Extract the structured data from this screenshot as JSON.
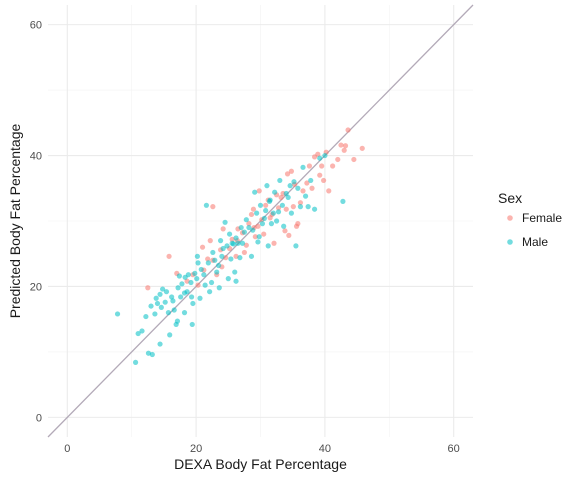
{
  "chart_data": {
    "type": "scatter",
    "title": "",
    "xlabel": "DEXA Body Fat Percentage",
    "ylabel": "Predicted Body Fat Percentage",
    "xlim": [
      -3,
      63
    ],
    "ylim": [
      -3,
      63
    ],
    "x_ticks": [
      0,
      20,
      40,
      60
    ],
    "y_ticks": [
      0,
      20,
      40,
      60
    ],
    "grid": true,
    "legend": {
      "title": "Sex",
      "position": "right"
    },
    "reference_line": {
      "slope": 1,
      "intercept": 0,
      "color": "#b3aab8"
    },
    "series": [
      {
        "name": "Female",
        "color": "#F8766D",
        "points": [
          [
            12.5,
            19.8
          ],
          [
            15.8,
            24.6
          ],
          [
            17.0,
            22.0
          ],
          [
            18.6,
            20.8
          ],
          [
            19.5,
            21.8
          ],
          [
            20.3,
            20.2
          ],
          [
            21.0,
            26.0
          ],
          [
            21.2,
            22.5
          ],
          [
            22.2,
            27.0
          ],
          [
            22.6,
            24.0
          ],
          [
            23.2,
            21.8
          ],
          [
            23.8,
            25.6
          ],
          [
            24.0,
            23.0
          ],
          [
            24.2,
            28.8
          ],
          [
            24.6,
            24.4
          ],
          [
            25.2,
            25.8
          ],
          [
            25.6,
            27.2
          ],
          [
            26.2,
            24.6
          ],
          [
            26.5,
            28.8
          ],
          [
            26.4,
            27.0
          ],
          [
            27.2,
            28.2
          ],
          [
            27.5,
            25.2
          ],
          [
            27.8,
            26.3
          ],
          [
            28.2,
            29.6
          ],
          [
            28.6,
            31.0
          ],
          [
            28.9,
            31.8
          ],
          [
            29.2,
            27.6
          ],
          [
            29.6,
            29.2
          ],
          [
            29.8,
            34.6
          ],
          [
            30.2,
            30.2
          ],
          [
            30.5,
            28.0
          ],
          [
            30.8,
            32.4
          ],
          [
            31.2,
            33.2
          ],
          [
            31.5,
            30.5
          ],
          [
            31.8,
            31.0
          ],
          [
            32.1,
            26.6
          ],
          [
            32.5,
            34.0
          ],
          [
            32.8,
            32.0
          ],
          [
            33.2,
            33.6
          ],
          [
            33.5,
            34.2
          ],
          [
            33.8,
            28.5
          ],
          [
            34.0,
            31.8
          ],
          [
            34.2,
            37.2
          ],
          [
            34.4,
            27.8
          ],
          [
            34.8,
            37.6
          ],
          [
            35.1,
            32.2
          ],
          [
            35.6,
            29.2
          ],
          [
            35.8,
            29.6
          ],
          [
            36.2,
            32.8
          ],
          [
            36.6,
            34.6
          ],
          [
            37.2,
            35.8
          ],
          [
            37.6,
            38.4
          ],
          [
            38.0,
            35.0
          ],
          [
            38.4,
            39.8
          ],
          [
            38.9,
            40.2
          ],
          [
            39.2,
            37.0
          ],
          [
            39.5,
            38.4
          ],
          [
            39.8,
            36.2
          ],
          [
            40.2,
            40.5
          ],
          [
            40.6,
            34.6
          ],
          [
            41.2,
            38.4
          ],
          [
            42.0,
            39.4
          ],
          [
            42.5,
            41.6
          ],
          [
            43.0,
            40.8
          ],
          [
            43.2,
            41.5
          ],
          [
            43.6,
            43.9
          ],
          [
            44.5,
            39.4
          ],
          [
            45.8,
            41.1
          ],
          [
            22.6,
            32.2
          ],
          [
            21.8,
            24.2
          ],
          [
            29.0,
            29.0
          ],
          [
            35.3,
            35.6
          ]
        ]
      },
      {
        "name": "Male",
        "color": "#00BFC4",
        "points": [
          [
            7.8,
            15.8
          ],
          [
            10.6,
            8.4
          ],
          [
            11.0,
            12.8
          ],
          [
            11.6,
            13.2
          ],
          [
            12.2,
            15.4
          ],
          [
            12.6,
            9.8
          ],
          [
            13.2,
            9.6
          ],
          [
            13.0,
            17.0
          ],
          [
            13.8,
            18.2
          ],
          [
            13.6,
            15.8
          ],
          [
            14.0,
            17.4
          ],
          [
            14.4,
            18.8
          ],
          [
            14.8,
            19.6
          ],
          [
            14.6,
            16.8
          ],
          [
            15.2,
            17.6
          ],
          [
            15.4,
            19.2
          ],
          [
            15.7,
            16.0
          ],
          [
            15.9,
            12.6
          ],
          [
            16.2,
            18.4
          ],
          [
            16.4,
            17.8
          ],
          [
            16.6,
            16.4
          ],
          [
            16.9,
            14.2
          ],
          [
            17.1,
            14.7
          ],
          [
            17.2,
            19.8
          ],
          [
            17.4,
            21.6
          ],
          [
            17.6,
            18.4
          ],
          [
            17.8,
            20.4
          ],
          [
            18.2,
            19.0
          ],
          [
            18.3,
            21.4
          ],
          [
            18.6,
            19.2
          ],
          [
            18.8,
            21.8
          ],
          [
            19.2,
            20.6
          ],
          [
            19.3,
            18.4
          ],
          [
            19.5,
            17.4
          ],
          [
            19.8,
            22.0
          ],
          [
            20.1,
            21.2
          ],
          [
            20.2,
            24.6
          ],
          [
            20.3,
            23.6
          ],
          [
            20.6,
            18.2
          ],
          [
            20.8,
            22.6
          ],
          [
            21.2,
            21.8
          ],
          [
            21.4,
            20.2
          ],
          [
            21.6,
            32.4
          ],
          [
            21.9,
            23.6
          ],
          [
            22.1,
            19.2
          ],
          [
            22.4,
            20.6
          ],
          [
            22.6,
            25.2
          ],
          [
            22.9,
            24.0
          ],
          [
            23.2,
            22.2
          ],
          [
            23.5,
            23.2
          ],
          [
            23.8,
            27.0
          ],
          [
            24.0,
            24.6
          ],
          [
            24.2,
            25.8
          ],
          [
            24.5,
            29.8
          ],
          [
            24.8,
            26.2
          ],
          [
            25.0,
            21.2
          ],
          [
            25.2,
            28.0
          ],
          [
            25.4,
            24.2
          ],
          [
            25.6,
            26.6
          ],
          [
            25.8,
            26.5
          ],
          [
            26.0,
            22.2
          ],
          [
            26.2,
            27.4
          ],
          [
            26.5,
            26.6
          ],
          [
            26.8,
            24.4
          ],
          [
            27.0,
            29.0
          ],
          [
            27.2,
            26.6
          ],
          [
            27.5,
            28.3
          ],
          [
            27.8,
            30.2
          ],
          [
            28.2,
            29.0
          ],
          [
            28.6,
            24.6
          ],
          [
            28.8,
            28.6
          ],
          [
            29.1,
            34.4
          ],
          [
            29.4,
            31.2
          ],
          [
            29.6,
            26.8
          ],
          [
            30.0,
            32.4
          ],
          [
            30.3,
            29.6
          ],
          [
            30.6,
            30.4
          ],
          [
            30.8,
            31.6
          ],
          [
            31.0,
            35.4
          ],
          [
            31.2,
            26.2
          ],
          [
            31.5,
            33.2
          ],
          [
            31.7,
            29.6
          ],
          [
            32.0,
            31.2
          ],
          [
            32.2,
            34.4
          ],
          [
            32.5,
            30.0
          ],
          [
            32.8,
            31.4
          ],
          [
            33.0,
            36.2
          ],
          [
            33.4,
            32.4
          ],
          [
            33.6,
            29.2
          ],
          [
            34.0,
            34.2
          ],
          [
            34.3,
            33.6
          ],
          [
            34.8,
            31.2
          ],
          [
            35.2,
            36.0
          ],
          [
            35.5,
            26.2
          ],
          [
            35.8,
            35.0
          ],
          [
            36.2,
            32.2
          ],
          [
            36.6,
            38.2
          ],
          [
            37.0,
            33.8
          ],
          [
            37.4,
            32.2
          ],
          [
            37.8,
            36.2
          ],
          [
            38.4,
            31.8
          ],
          [
            39.2,
            39.6
          ],
          [
            40.0,
            40.0
          ],
          [
            42.8,
            33.0
          ],
          [
            19.4,
            14.2
          ],
          [
            14.4,
            11.2
          ],
          [
            18.2,
            16.0
          ],
          [
            23.6,
            19.8
          ],
          [
            26.2,
            20.8
          ],
          [
            29.8,
            27.6
          ],
          [
            31.4,
            33.0
          ],
          [
            34.6,
            35.4
          ]
        ]
      }
    ]
  }
}
